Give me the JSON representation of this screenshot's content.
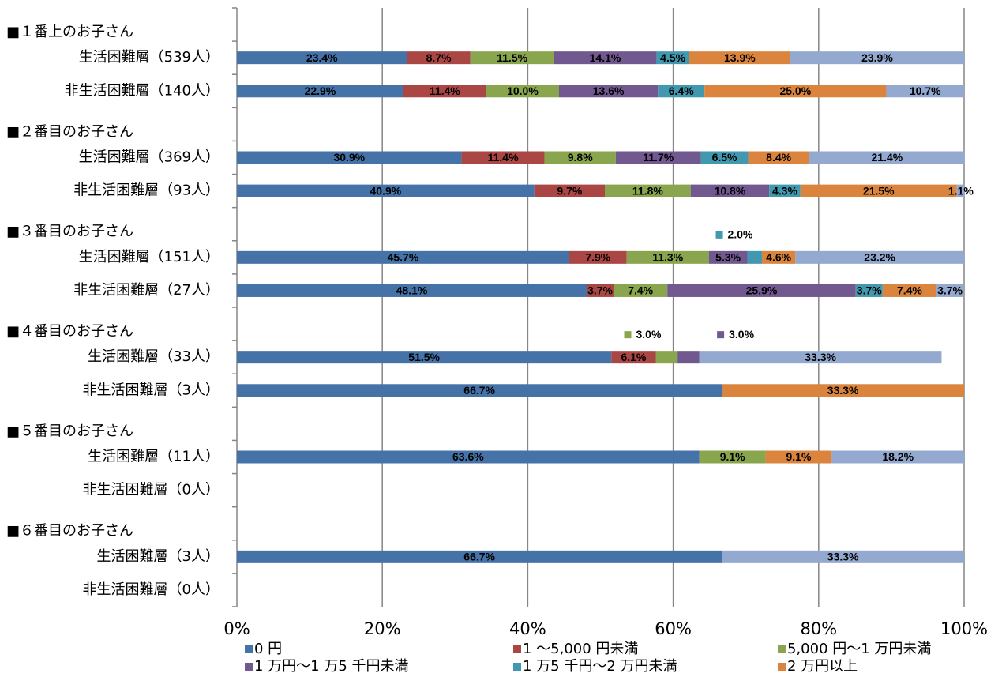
{
  "chart_data": {
    "type": "stacked-bar-horizontal",
    "categories": [
      "■１番上のお子さん",
      "生活困難層（539人）",
      "非生活困難層（140人）",
      "■２番目のお子さん",
      "生活困難層（369人）",
      "非生活困難層（93人）",
      "■３番目のお子さん",
      "生活困難層（151人）",
      "非生活困難層（27人）",
      "■４番目のお子さん",
      "生活困難層（33人）",
      "非生活困難層（3人）",
      "■５番目のお子さん",
      "生活困難層（11人）",
      "非生活困難層（0人）",
      "■６番目のお子さん",
      "生活困難層（3人）",
      "非生活困難層（0人）"
    ],
    "series": [
      {
        "name": "0 円",
        "color": "#4572a7",
        "values": [
          null,
          23.4,
          22.9,
          null,
          30.9,
          40.9,
          null,
          45.7,
          48.1,
          null,
          51.5,
          66.7,
          null,
          63.6,
          null,
          null,
          66.7,
          null
        ],
        "value_labels": [
          null,
          "23.4%",
          "22.9%",
          null,
          "30.9%",
          "40.9%",
          null,
          "45.7%",
          "48.1%",
          null,
          "51.5%",
          "66.7%",
          null,
          "63.6%",
          null,
          null,
          "66.7%",
          null
        ]
      },
      {
        "name": "1 ～5,000 円未満",
        "color": "#aa4643",
        "values": [
          null,
          8.7,
          11.4,
          null,
          11.4,
          9.7,
          null,
          7.9,
          3.7,
          null,
          6.1,
          null,
          null,
          null,
          null,
          null,
          null,
          null
        ],
        "value_labels": [
          null,
          "8.7%",
          "11.4%",
          null,
          "11.4%",
          "9.7%",
          null,
          "7.9%",
          "3.7%",
          null,
          "6.1%",
          null,
          null,
          null,
          null,
          null,
          null,
          null
        ]
      },
      {
        "name": "5,000 円～1 万円未満",
        "color": "#89a54e",
        "values": [
          null,
          11.5,
          10.0,
          null,
          9.8,
          11.8,
          null,
          11.3,
          7.4,
          null,
          3.0,
          null,
          null,
          9.1,
          null,
          null,
          null,
          null
        ],
        "value_labels": [
          null,
          "11.5%",
          "10.0%",
          null,
          "9.8%",
          "11.8%",
          null,
          "11.3%",
          "7.4%",
          null,
          "3.0%",
          null,
          null,
          "9.1%",
          null,
          null,
          null,
          null
        ]
      },
      {
        "name": "1 万円～1 万5 千円未満",
        "color": "#71588f",
        "values": [
          null,
          14.1,
          13.6,
          null,
          11.7,
          10.8,
          null,
          5.3,
          25.9,
          null,
          3.0,
          null,
          null,
          null,
          null,
          null,
          null,
          null
        ],
        "value_labels": [
          null,
          "14.1%",
          "13.6%",
          null,
          "11.7%",
          "10.8%",
          null,
          "5.3%",
          "25.9%",
          null,
          "3.0%",
          null,
          null,
          null,
          null,
          null,
          null,
          null
        ]
      },
      {
        "name": "1 万5 千円～2 万円未満",
        "color": "#4198af",
        "values": [
          null,
          4.5,
          6.4,
          null,
          6.5,
          4.3,
          null,
          2.0,
          3.7,
          null,
          null,
          null,
          null,
          null,
          null,
          null,
          null,
          null
        ],
        "value_labels": [
          null,
          "4.5%",
          "6.4%",
          null,
          "6.5%",
          "4.3%",
          null,
          "2.0%",
          "3.7%",
          null,
          null,
          null,
          null,
          null,
          null,
          null,
          null,
          null
        ]
      },
      {
        "name": "2 万円以上",
        "color": "#db843d",
        "values": [
          null,
          13.9,
          25.0,
          null,
          8.4,
          21.5,
          null,
          4.6,
          7.4,
          null,
          null,
          33.3,
          null,
          9.1,
          null,
          null,
          null,
          null
        ],
        "value_labels": [
          null,
          "13.9%",
          "25.0%",
          null,
          "8.4%",
          "21.5%",
          null,
          "4.6%",
          "7.4%",
          null,
          null,
          "33.3%",
          null,
          "9.1%",
          null,
          null,
          null,
          null
        ]
      },
      {
        "color": "#93a9cf",
        "values": [
          null,
          23.9,
          10.7,
          null,
          21.4,
          1.1,
          null,
          23.2,
          3.7,
          null,
          33.3,
          null,
          null,
          18.2,
          null,
          null,
          33.3,
          null
        ],
        "value_labels": [
          null,
          "23.9%",
          "10.7%",
          null,
          "21.4%",
          "1.1%",
          null,
          "23.2%",
          "3.7%",
          null,
          "33.3%",
          null,
          null,
          "18.2%",
          null,
          null,
          "33.3%",
          null
        ]
      }
    ],
    "xlim": [
      0,
      100
    ],
    "xticks": [
      {
        "value": 0,
        "label": "0%"
      },
      {
        "value": 20,
        "label": "20%"
      },
      {
        "value": 40,
        "label": "40%"
      },
      {
        "value": 60,
        "label": "60%"
      },
      {
        "value": 80,
        "label": "80%"
      },
      {
        "value": 100,
        "label": "100%"
      }
    ],
    "grid": true
  }
}
